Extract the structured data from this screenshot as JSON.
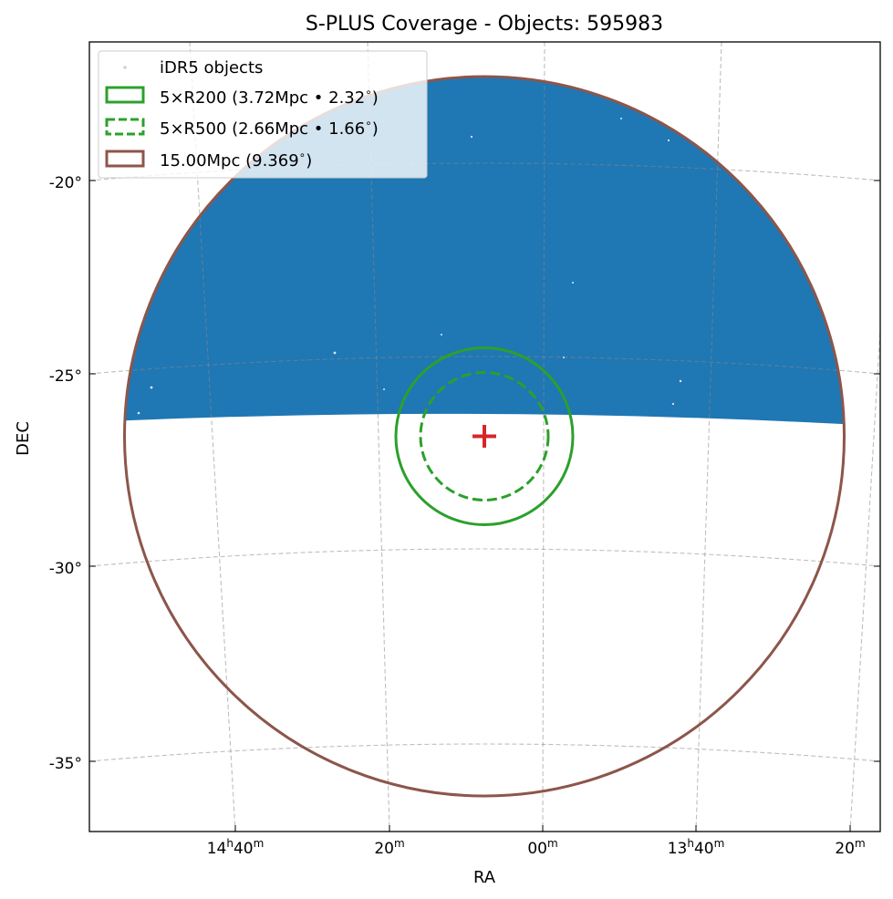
{
  "chart_data": {
    "type": "scatter",
    "title": "S-PLUS Coverage - Objects: 595983",
    "xlabel": "RA",
    "ylabel": "DEC",
    "projection": "gnomonic (tangent-plane) sky projection",
    "center": {
      "ra_deg": 213.2,
      "dec_deg": -26.6
    },
    "grid": true,
    "legend_position": "upper left",
    "x_ticks": [
      {
        "label": "14ʰ40ᵐ",
        "main": "14",
        "sup1": "h",
        "mid": "40",
        "sup2": "m",
        "ra_deg": 220
      },
      {
        "label": "20ᵐ",
        "main": "",
        "sup1": "",
        "mid": "20",
        "sup2": "m",
        "ra_deg": 215
      },
      {
        "label": "00ᵐ",
        "main": "",
        "sup1": "",
        "mid": "00",
        "sup2": "m",
        "ra_deg": 210
      },
      {
        "label": "13ʰ40ᵐ",
        "main": "13",
        "sup1": "h",
        "mid": "40",
        "sup2": "m",
        "ra_deg": 205
      },
      {
        "label": "20ᵐ",
        "main": "",
        "sup1": "",
        "mid": "20",
        "sup2": "m",
        "ra_deg": 200
      }
    ],
    "y_ticks": [
      {
        "label": "-20°",
        "dec_deg": -20
      },
      {
        "label": "-25°",
        "dec_deg": -25
      },
      {
        "label": "-30°",
        "dec_deg": -30
      },
      {
        "label": "-35°",
        "dec_deg": -35
      }
    ],
    "coverage": {
      "name": "iDR5 objects",
      "color": "#1f77b4",
      "dec_min": -25.9,
      "dec_max": -17.2,
      "count": 595983
    },
    "circles": [
      {
        "name": "5×R200 (3.72Mpc • 2.32°)",
        "label_main": "5×R200 (3.72Mpc • 2.32",
        "radius_deg": 2.32,
        "color": "#2ca02c",
        "style": "solid"
      },
      {
        "name": "5×R500 (2.66Mpc • 1.66°)",
        "label_main": "5×R500 (2.66Mpc • 1.66",
        "radius_deg": 1.66,
        "color": "#2ca02c",
        "style": "dashed"
      },
      {
        "name": "15.00Mpc (9.369°)",
        "label_main": "15.00Mpc (9.369",
        "radius_deg": 9.369,
        "color": "#8c564b",
        "style": "solid"
      }
    ],
    "center_marker": {
      "symbol": "+",
      "color": "#d62728"
    }
  }
}
